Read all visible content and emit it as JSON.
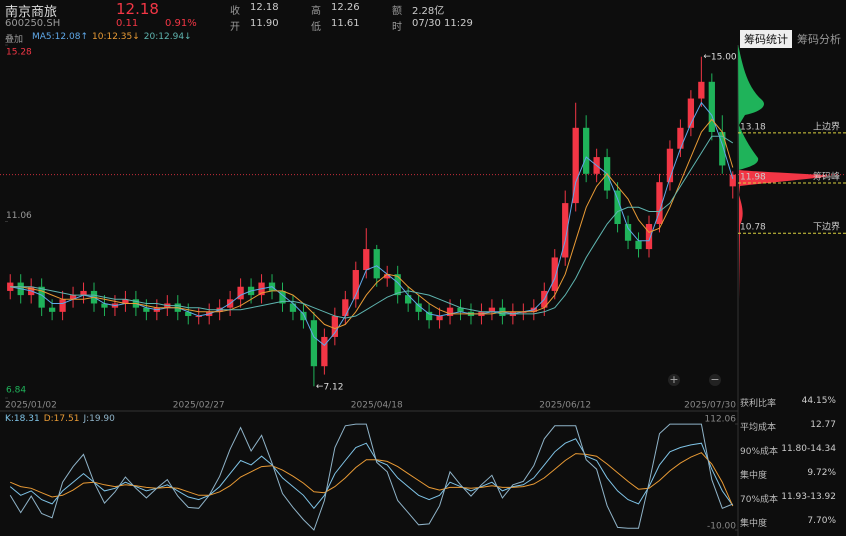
{
  "header": {
    "name": "南京商旅",
    "code": "600250.SH",
    "price": "12.18",
    "change": "0.11",
    "change_pct": "0.91%",
    "fields": [
      {
        "label": "收",
        "value": "12.18"
      },
      {
        "label": "高",
        "value": "12.26"
      },
      {
        "label": "额",
        "value": "2.28亿"
      },
      {
        "label": "开",
        "value": "11.90"
      },
      {
        "label": "低",
        "value": "11.61"
      },
      {
        "label": "时",
        "value": "07/30 11:29"
      }
    ],
    "overlay": "叠加",
    "ma_legend": [
      "MA5:12.08↑",
      "10:12.35↓",
      "20:12.94↓"
    ],
    "kdj_legend": [
      "K:18.31",
      "D:17.51",
      "J:19.90"
    ]
  },
  "tabs": [
    "筹码统计",
    "筹码分析"
  ],
  "stats": [
    {
      "label": "获利比率",
      "value": "44.15%"
    },
    {
      "label": "平均成本",
      "value": "12.77"
    },
    {
      "label": "90%成本",
      "value": "11.80-14.34"
    },
    {
      "label": "集中度",
      "value": "9.72%"
    },
    {
      "label": "70%成本",
      "value": "11.93-13.92"
    },
    {
      "label": "集中度",
      "value": "7.70%"
    }
  ],
  "zoom": [
    "+",
    "−"
  ],
  "chart_data": [
    {
      "type": "candlestick",
      "up_color": "#f23645",
      "down_color": "#1fb35a",
      "categories": [
        "2025/01/02",
        null,
        null,
        null,
        null,
        null,
        null,
        null,
        null,
        null,
        null,
        null,
        null,
        null,
        null,
        null,
        null,
        null,
        "2025/02/27",
        null,
        null,
        null,
        null,
        null,
        null,
        null,
        null,
        null,
        null,
        null,
        null,
        null,
        null,
        null,
        null,
        "2025/04/18",
        null,
        null,
        null,
        null,
        null,
        null,
        null,
        null,
        null,
        null,
        null,
        null,
        null,
        null,
        null,
        null,
        null,
        "2025/06/12",
        null,
        null,
        null,
        null,
        null,
        null,
        null,
        null,
        null,
        null,
        null,
        null,
        null,
        null,
        null,
        "2025/07/30"
      ],
      "open": [
        9.4,
        9.6,
        9.3,
        9.5,
        9.0,
        8.9,
        9.2,
        9.3,
        9.4,
        9.1,
        9.0,
        9.1,
        9.2,
        9.0,
        8.9,
        9.0,
        9.1,
        8.9,
        8.8,
        8.8,
        8.9,
        9.0,
        9.2,
        9.5,
        9.3,
        9.6,
        9.4,
        9.1,
        8.9,
        8.7,
        7.6,
        8.3,
        8.8,
        9.2,
        9.9,
        10.4,
        9.7,
        9.8,
        9.3,
        9.1,
        8.9,
        8.7,
        8.8,
        9.0,
        8.9,
        8.8,
        8.9,
        9.0,
        8.8,
        8.9,
        8.9,
        9.0,
        9.4,
        10.2,
        11.5,
        13.3,
        12.2,
        12.6,
        11.8,
        11.0,
        10.6,
        10.4,
        11.0,
        12.0,
        12.8,
        13.3,
        14.0,
        14.4,
        13.2,
        11.9
      ],
      "high": [
        9.8,
        9.8,
        9.7,
        9.7,
        9.2,
        9.4,
        9.5,
        9.6,
        9.6,
        9.3,
        9.3,
        9.4,
        9.4,
        9.2,
        9.2,
        9.3,
        9.3,
        9.1,
        9.0,
        9.1,
        9.2,
        9.4,
        9.7,
        9.7,
        9.8,
        9.8,
        9.6,
        9.3,
        9.1,
        8.9,
        8.5,
        9.0,
        9.4,
        10.1,
        10.9,
        10.5,
        10.0,
        10.0,
        9.5,
        9.3,
        9.1,
        9.0,
        9.2,
        9.2,
        9.1,
        9.1,
        9.2,
        9.2,
        9.1,
        9.1,
        9.2,
        9.6,
        10.4,
        11.8,
        13.9,
        13.6,
        12.8,
        12.8,
        12.0,
        11.2,
        10.8,
        11.2,
        12.2,
        13.0,
        13.5,
        14.2,
        15.0,
        14.6,
        13.6,
        12.26
      ],
      "low": [
        9.2,
        9.1,
        9.1,
        8.8,
        8.7,
        8.7,
        9.0,
        9.1,
        8.9,
        8.8,
        8.8,
        8.9,
        8.8,
        8.7,
        8.7,
        8.8,
        8.7,
        8.6,
        8.6,
        8.6,
        8.7,
        8.8,
        9.0,
        9.1,
        9.1,
        9.2,
        8.9,
        8.7,
        8.5,
        7.12,
        7.4,
        8.1,
        8.6,
        9.0,
        9.7,
        9.5,
        9.5,
        9.1,
        8.9,
        8.7,
        8.5,
        8.5,
        8.6,
        8.7,
        8.6,
        8.6,
        8.7,
        8.6,
        8.6,
        8.7,
        8.7,
        8.8,
        9.2,
        10.0,
        11.3,
        12.0,
        12.0,
        11.6,
        10.8,
        10.4,
        10.2,
        10.2,
        10.8,
        11.8,
        12.6,
        13.1,
        13.8,
        13.0,
        12.2,
        11.61
      ],
      "close": [
        9.6,
        9.3,
        9.5,
        9.0,
        8.9,
        9.2,
        9.3,
        9.4,
        9.1,
        9.0,
        9.1,
        9.2,
        9.0,
        8.9,
        9.0,
        9.1,
        8.9,
        8.8,
        8.8,
        8.9,
        9.0,
        9.2,
        9.5,
        9.3,
        9.6,
        9.4,
        9.1,
        8.9,
        8.7,
        7.6,
        8.3,
        8.8,
        9.2,
        9.9,
        10.4,
        9.7,
        9.8,
        9.3,
        9.1,
        8.9,
        8.7,
        8.8,
        9.0,
        8.9,
        8.8,
        8.9,
        9.0,
        8.8,
        8.9,
        8.9,
        9.0,
        9.4,
        10.2,
        11.5,
        13.3,
        12.2,
        12.6,
        11.8,
        11.0,
        10.6,
        10.4,
        11.0,
        12.0,
        12.8,
        13.3,
        14.0,
        14.4,
        13.2,
        12.4,
        12.18
      ],
      "series": [
        {
          "color": "#5fa8e8",
          "values": [
            9.5,
            9.45,
            9.4,
            9.3,
            9.1,
            9.1,
            9.2,
            9.3,
            9.25,
            9.1,
            9.05,
            9.1,
            9.1,
            9.0,
            8.95,
            9.0,
            9.0,
            8.9,
            8.8,
            8.85,
            8.95,
            9.1,
            9.3,
            9.4,
            9.45,
            9.5,
            9.3,
            9.1,
            8.85,
            8.3,
            8.1,
            8.4,
            8.8,
            9.3,
            9.9,
            10.0,
            9.8,
            9.6,
            9.3,
            9.05,
            8.85,
            8.8,
            8.85,
            8.9,
            8.85,
            8.85,
            8.9,
            8.9,
            8.85,
            8.9,
            8.95,
            9.2,
            9.7,
            10.6,
            12.0,
            12.6,
            12.4,
            12.2,
            11.6,
            10.9,
            10.6,
            10.6,
            11.3,
            12.1,
            12.8,
            13.4,
            13.9,
            13.6,
            12.9,
            12.08
          ]
        },
        {
          "color": "#e89a35",
          "values": [
            9.5,
            9.5,
            9.45,
            9.4,
            9.3,
            9.2,
            9.2,
            9.2,
            9.25,
            9.2,
            9.15,
            9.1,
            9.1,
            9.05,
            9.0,
            9.0,
            9.0,
            8.95,
            8.9,
            8.9,
            8.9,
            8.95,
            9.05,
            9.2,
            9.35,
            9.4,
            9.4,
            9.3,
            9.1,
            8.85,
            8.6,
            8.5,
            8.6,
            8.9,
            9.3,
            9.6,
            9.8,
            9.75,
            9.5,
            9.3,
            9.1,
            8.95,
            8.85,
            8.85,
            8.85,
            8.85,
            8.85,
            8.9,
            8.9,
            8.9,
            8.9,
            9.0,
            9.3,
            9.8,
            10.6,
            11.4,
            11.9,
            12.2,
            11.9,
            11.6,
            11.1,
            10.8,
            10.9,
            11.4,
            12.0,
            12.6,
            13.2,
            13.5,
            13.2,
            12.35
          ]
        },
        {
          "color": "#5fb5b0",
          "values": [
            9.5,
            9.5,
            9.5,
            9.45,
            9.4,
            9.35,
            9.3,
            9.3,
            9.3,
            9.25,
            9.2,
            9.2,
            9.15,
            9.1,
            9.1,
            9.05,
            9.05,
            9.0,
            9.0,
            8.95,
            8.95,
            8.95,
            8.95,
            9.0,
            9.05,
            9.1,
            9.15,
            9.15,
            9.1,
            9.0,
            8.9,
            8.8,
            8.75,
            8.8,
            8.95,
            9.1,
            9.25,
            9.35,
            9.4,
            9.35,
            9.3,
            9.2,
            9.1,
            9.0,
            8.95,
            8.9,
            8.9,
            8.85,
            8.85,
            8.85,
            8.85,
            8.9,
            9.0,
            9.3,
            9.7,
            10.2,
            10.6,
            11.0,
            11.3,
            11.4,
            11.4,
            11.3,
            11.3,
            11.5,
            11.9,
            12.3,
            12.7,
            13.1,
            13.1,
            12.94
          ]
        }
      ],
      "ylim": [
        6.84,
        15.28
      ],
      "yticks": [
        6.84,
        11.06,
        15.28
      ],
      "extremes": [
        "15.00",
        "7.12"
      ],
      "levels": [
        {
          "price": 13.18,
          "label": "上边界"
        },
        {
          "price": 11.98,
          "label": "筹码峰"
        },
        {
          "price": 10.78,
          "label": "下边界"
        }
      ],
      "level_color": "#d8d040"
    },
    {
      "type": "line",
      "series": [
        {
          "color": "#7fc3e6",
          "values": [
            40,
            30,
            35,
            25,
            20,
            35,
            45,
            55,
            45,
            35,
            38,
            45,
            40,
            35,
            38,
            42,
            35,
            28,
            25,
            30,
            40,
            55,
            70,
            65,
            75,
            65,
            50,
            40,
            30,
            15,
            30,
            55,
            70,
            85,
            90,
            70,
            65,
            50,
            40,
            30,
            25,
            30,
            45,
            40,
            35,
            40,
            45,
            35,
            40,
            42,
            50,
            65,
            80,
            90,
            95,
            75,
            70,
            50,
            35,
            25,
            20,
            40,
            65,
            80,
            85,
            88,
            90,
            60,
            35,
            18.31
          ]
        },
        {
          "color": "#e89a35",
          "values": [
            45,
            40,
            38,
            33,
            28,
            30,
            36,
            44,
            45,
            42,
            40,
            42,
            41,
            39,
            38,
            39,
            38,
            34,
            30,
            30,
            34,
            41,
            51,
            57,
            63,
            64,
            59,
            52,
            44,
            34,
            33,
            40,
            50,
            62,
            71,
            71,
            69,
            63,
            55,
            47,
            39,
            36,
            39,
            39,
            38,
            39,
            41,
            39,
            39,
            40,
            43,
            50,
            60,
            70,
            78,
            77,
            75,
            66,
            56,
            46,
            37,
            38,
            47,
            58,
            67,
            74,
            79,
            66,
            45,
            17.51
          ]
        },
        {
          "color": "#8fb3c8",
          "values": [
            30,
            10,
            29,
            9,
            4,
            45,
            63,
            77,
            45,
            21,
            34,
            51,
            38,
            27,
            38,
            48,
            29,
            16,
            15,
            30,
            52,
            83,
            108,
            81,
            99,
            67,
            32,
            16,
            2,
            -10,
            24,
            85,
            110,
            112,
            112,
            68,
            57,
            24,
            10,
            -4,
            -3,
            18,
            57,
            42,
            29,
            42,
            53,
            27,
            42,
            46,
            64,
            95,
            110,
            110,
            110,
            71,
            60,
            18,
            -7,
            -8,
            -8,
            44,
            101,
            112,
            112,
            112,
            112,
            48,
            15,
            19.9
          ]
        }
      ],
      "ylim": [
        -10,
        112.06
      ],
      "yticks": [
        {
          "value": -10,
          "label": "-10.00"
        },
        112.06
      ]
    }
  ]
}
